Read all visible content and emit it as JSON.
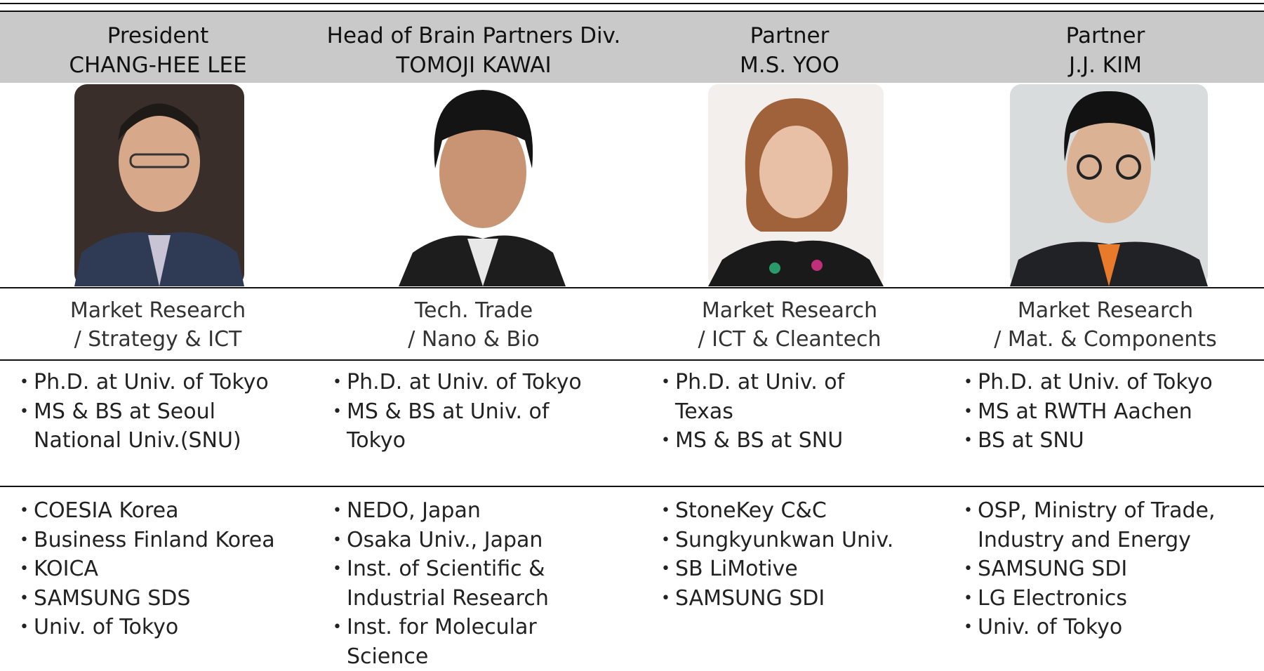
{
  "columns": [
    {
      "role": "President",
      "name": "CHANG-HEE LEE",
      "specialty": [
        "Market Research",
        "/ Strategy & ICT"
      ],
      "education": [
        "Ph.D. at Univ. of Tokyo",
        "MS & BS at Seoul National Univ.(SNU)"
      ],
      "career": [
        "COESIA Korea",
        "Business Finland Korea",
        "KOICA",
        "SAMSUNG SDS",
        "Univ. of Tokyo"
      ]
    },
    {
      "role": "Head of Brain Partners Div.",
      "name": "TOMOJI KAWAI",
      "specialty": [
        "Tech. Trade",
        "/ Nano & Bio"
      ],
      "education": [
        "Ph.D. at Univ. of Tokyo",
        "MS & BS at Univ. of Tokyo"
      ],
      "career": [
        "NEDO, Japan",
        "Osaka Univ., Japan",
        "Inst. of Scientific & Industrial Research",
        "Inst. for Molecular Science"
      ]
    },
    {
      "role": "Partner",
      "name": "M.S. YOO",
      "specialty": [
        "Market Research",
        "/ ICT & Cleantech"
      ],
      "education": [
        "Ph.D. at Univ. of Texas",
        "MS & BS at SNU"
      ],
      "career": [
        "StoneKey C&C",
        "Sungkyunkwan Univ.",
        "SB LiMotive",
        "SAMSUNG SDI"
      ]
    },
    {
      "role": "Partner",
      "name": "J.J. KIM",
      "specialty": [
        "Market Research",
        "/ Mat. & Components"
      ],
      "education": [
        "Ph.D. at Univ. of Tokyo",
        "MS at RWTH Aachen",
        "BS at SNU"
      ],
      "career": [
        "OSP, Ministry of Trade, Industry and Energy",
        "SAMSUNG SDI",
        "LG Electronics",
        "Univ. of Tokyo"
      ]
    }
  ]
}
